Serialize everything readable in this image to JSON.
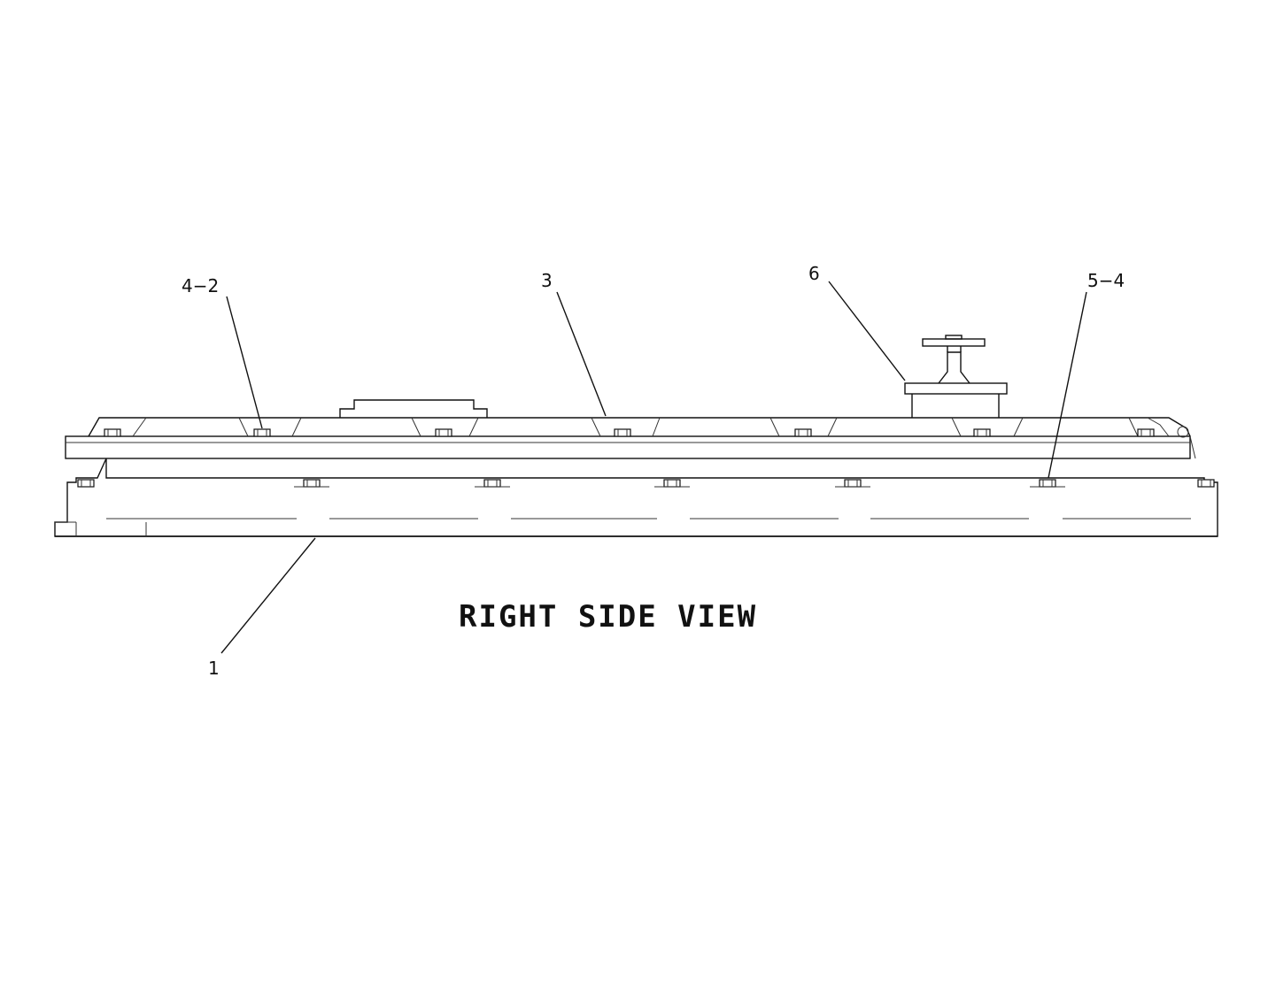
{
  "view_title": "RIGHT SIDE VIEW",
  "callouts": {
    "c1": "1",
    "c3": "3",
    "c4_2": "4−2",
    "c5_4": "5−4",
    "c6": "6"
  }
}
